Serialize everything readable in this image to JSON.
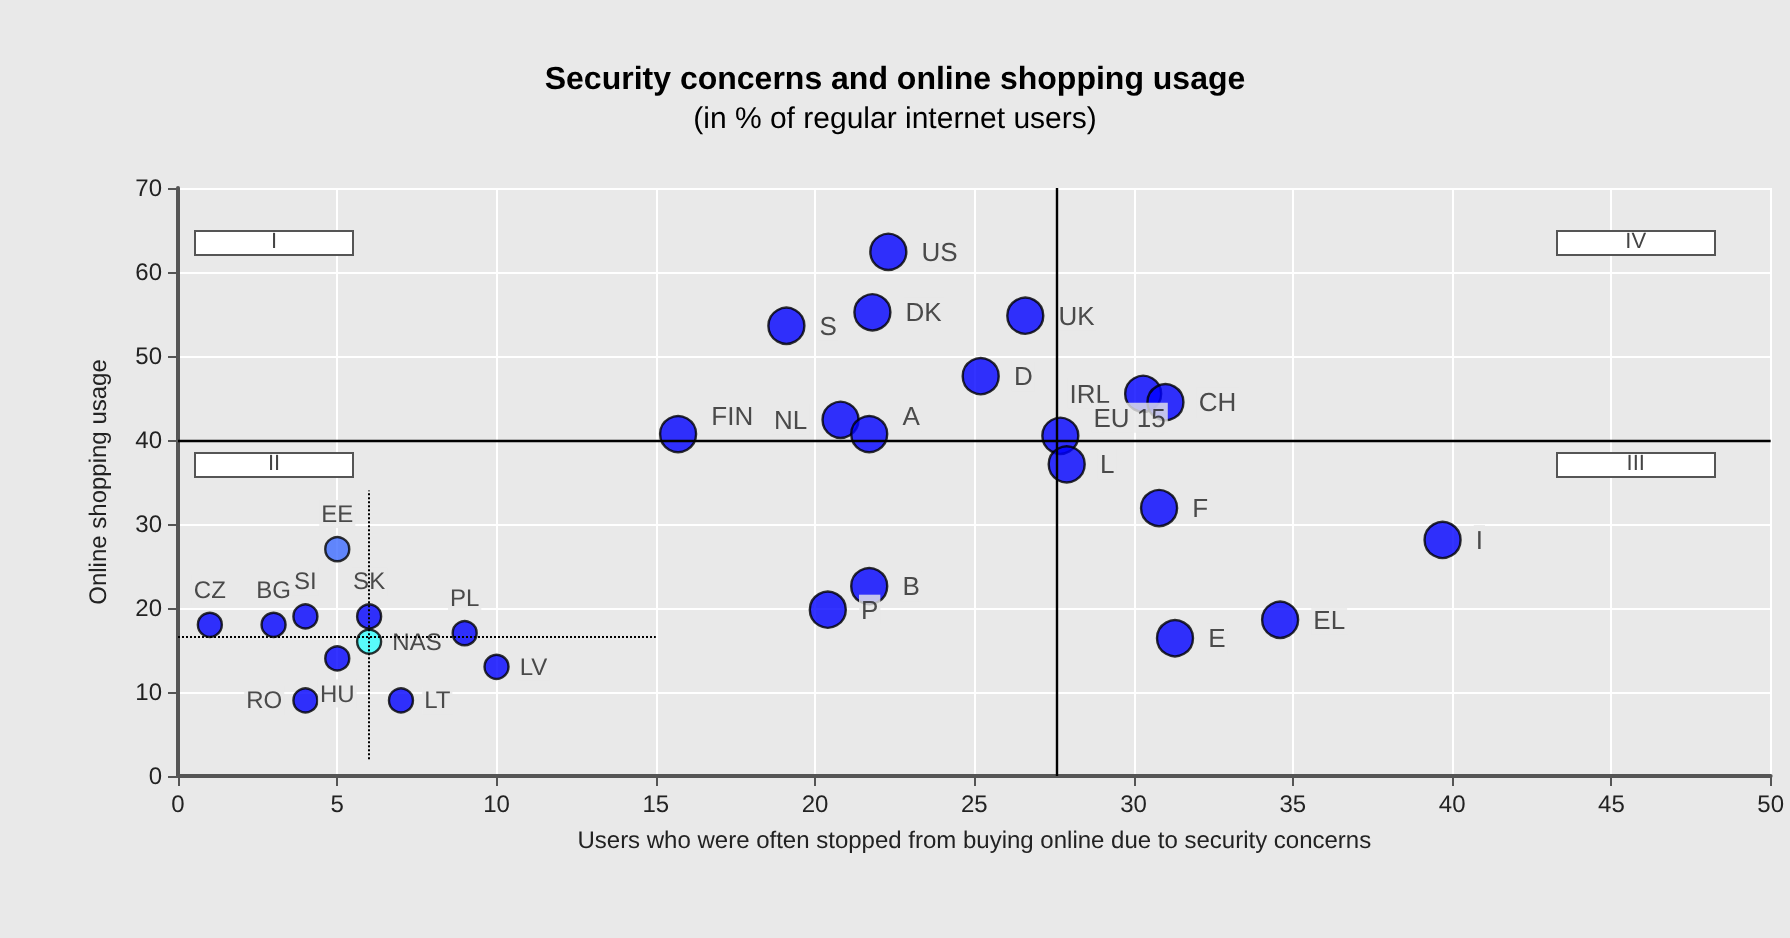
{
  "chart_data": {
    "type": "scatter",
    "title": "Security concerns and online shopping usage",
    "subtitle": "(in % of regular internet users)",
    "xlabel": "Users who were often stopped from buying online due to security concerns",
    "ylabel": "Online shopping usage",
    "series": [
      {
        "color": "#0000ff",
        "x": [
          22.3,
          21.8,
          19.1,
          26.6,
          25.2,
          30.3,
          31.0,
          20.8,
          21.7,
          15.7,
          27.7,
          27.9,
          30.8,
          21.7,
          20.4,
          31.3,
          39.7,
          34.6
        ],
        "values": [
          62.4,
          55.2,
          53.6,
          54.8,
          47.6,
          45.5,
          44.5,
          42.4,
          40.7,
          40.7,
          40.5,
          37.1,
          31.9,
          22.6,
          19.8,
          16.4,
          28.1,
          18.6
        ],
        "value_labels": [
          "US",
          "DK",
          "S",
          "UK",
          "D",
          "IRL",
          "CH",
          "NL",
          "A",
          "FIN",
          "EU 15",
          "L",
          "F",
          "B",
          "P",
          "E",
          "I",
          "EL"
        ]
      },
      {
        "colors": [
          "#0000ff",
          "#0000ff",
          "#0000ff",
          "#3d6bff",
          "#0000ff",
          "#33ffff",
          "#0000ff",
          "#0000ff",
          "#0000ff",
          "#0000ff",
          "#0000ff"
        ],
        "x": [
          1,
          3,
          4,
          5,
          6,
          6,
          9,
          10,
          5,
          4,
          7
        ],
        "values": [
          18,
          18,
          19,
          27,
          19,
          16,
          17,
          13,
          14,
          9,
          9
        ],
        "value_labels": [
          "CZ",
          "BG",
          "SI",
          "EE",
          "SK",
          "NAS",
          "PL",
          "LV",
          "HU",
          "RO",
          "LT"
        ]
      }
    ],
    "xlim": [
      0,
      50
    ],
    "xticks": [
      0,
      5,
      10,
      15,
      20,
      25,
      30,
      35,
      40,
      45,
      50
    ],
    "ylim": [
      0,
      70
    ],
    "yticks": [
      0,
      10,
      20,
      30,
      40,
      50,
      60,
      70
    ],
    "grid": true,
    "marker": "circle",
    "ref_lines": [
      {
        "axis": "x",
        "value": 27.6,
        "line_style": "solid"
      },
      {
        "axis": "y",
        "value": 40,
        "line_style": "solid"
      },
      {
        "axis": "x",
        "value": 6,
        "line_style": "dotted"
      },
      {
        "axis": "y",
        "value": 16.5,
        "line_style": "dotted"
      }
    ],
    "annotations": [
      "I",
      "II",
      "III",
      "IV"
    ]
  }
}
